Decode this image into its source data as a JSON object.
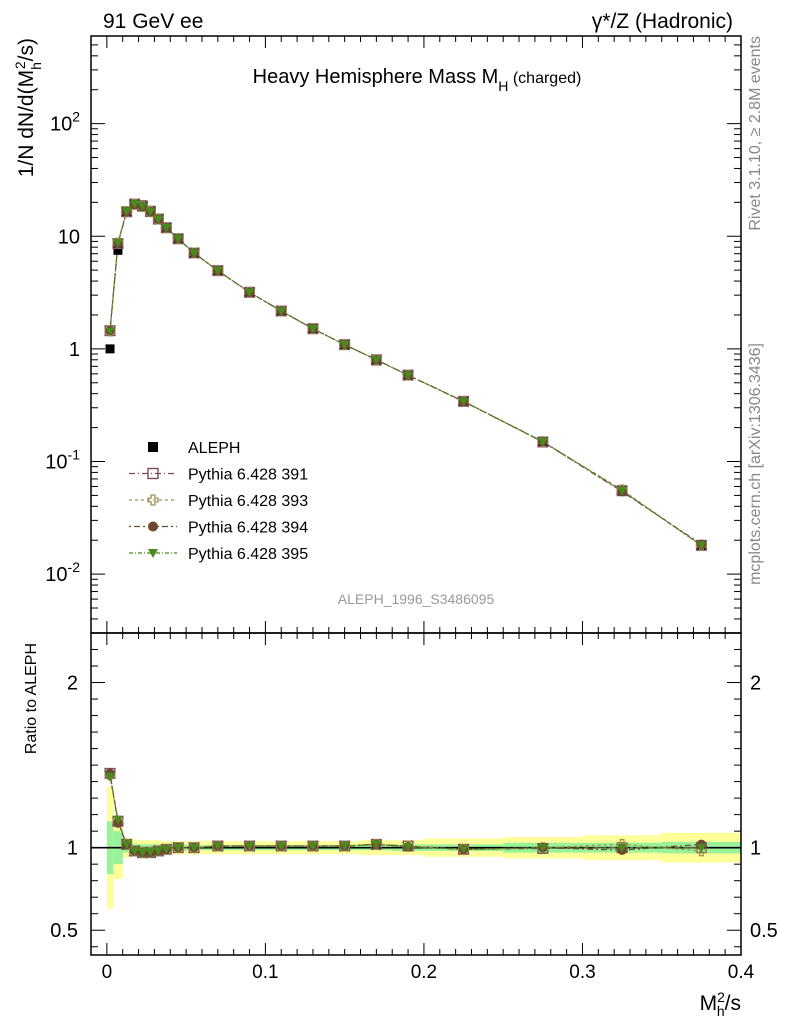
{
  "header": {
    "left": "91 GeV ee",
    "right": "γ*/Z (Hadronic)"
  },
  "side": {
    "rivet": "Rivet 3.1.10, ≥ 2.8M events",
    "mcplots": "mcplots.cern.ch [arXiv:1306.3436]"
  },
  "chart_data": [
    {
      "type": "scatter",
      "title": "Heavy Hemisphere Mass M_H (charged)",
      "ylabel": "1/N dN/d(M_h^2/s)",
      "yscale": "log",
      "ylim": [
        0.003,
        600
      ],
      "xlim": [
        -0.01,
        0.4
      ],
      "yticks_major": [
        "10^-2",
        "10^-1",
        "1",
        "10",
        "10^2"
      ],
      "watermark": "ALEPH_1996_S3486095",
      "legend_position": "middle-left",
      "x": [
        0.002,
        0.007,
        0.0125,
        0.0175,
        0.0225,
        0.0275,
        0.0325,
        0.0375,
        0.045,
        0.055,
        0.07,
        0.09,
        0.11,
        0.13,
        0.15,
        0.17,
        0.19,
        0.225,
        0.275,
        0.325,
        0.375
      ],
      "series": [
        {
          "name": "ALEPH",
          "color": "#000000",
          "marker": "square",
          "values": [
            1.0,
            7.5,
            16.3,
            19.5,
            19.0,
            17.0,
            14.5,
            12.0,
            9.5,
            7.1,
            4.9,
            3.15,
            2.15,
            1.5,
            1.08,
            0.78,
            0.58,
            0.345,
            0.15,
            0.055,
            0.018
          ]
        },
        {
          "name": "Pythia 6.428 391",
          "color": "#7b4a5e",
          "marker": "open-square",
          "values": [
            1.45,
            8.6,
            16.5,
            19.3,
            18.5,
            16.6,
            14.2,
            11.9,
            9.5,
            7.1,
            4.95,
            3.18,
            2.17,
            1.51,
            1.09,
            0.8,
            0.585,
            0.342,
            0.149,
            0.055,
            0.018
          ]
        },
        {
          "name": "Pythia 6.428 393",
          "color": "#a09050",
          "marker": "open-cross",
          "values": [
            1.44,
            8.7,
            16.6,
            19.2,
            18.4,
            16.5,
            14.2,
            11.9,
            9.5,
            7.1,
            4.95,
            3.18,
            2.17,
            1.51,
            1.09,
            0.8,
            0.585,
            0.342,
            0.15,
            0.056,
            0.018
          ]
        },
        {
          "name": "Pythia 6.428 394",
          "color": "#6b4a30",
          "marker": "circle",
          "values": [
            1.45,
            8.6,
            16.5,
            19.1,
            18.4,
            16.5,
            14.2,
            11.9,
            9.5,
            7.1,
            4.95,
            3.18,
            2.17,
            1.51,
            1.09,
            0.8,
            0.583,
            0.341,
            0.15,
            0.054,
            0.0184
          ]
        },
        {
          "name": "Pythia 6.428 395",
          "color": "#4a8a1e",
          "marker": "triangle-down",
          "values": [
            1.43,
            8.8,
            16.7,
            19.3,
            18.5,
            16.6,
            14.2,
            11.9,
            9.5,
            7.1,
            4.95,
            3.18,
            2.17,
            1.51,
            1.09,
            0.8,
            0.583,
            0.342,
            0.15,
            0.055,
            0.018
          ]
        }
      ]
    },
    {
      "type": "scatter",
      "ylabel": "Ratio to ALEPH",
      "xlabel": "M_h^2/s",
      "ylim": [
        0.35,
        2.3
      ],
      "xlim": [
        -0.01,
        0.4
      ],
      "xticks": [
        "0",
        "0.1",
        "0.2",
        "0.3",
        "0.4"
      ],
      "yticks": [
        "0.5",
        "1",
        "2"
      ],
      "reference_line": 1,
      "bands": {
        "x_edges": [
          0.0,
          0.004,
          0.01,
          0.015,
          0.02,
          0.025,
          0.03,
          0.035,
          0.04,
          0.05,
          0.06,
          0.08,
          0.1,
          0.12,
          0.14,
          0.16,
          0.18,
          0.2,
          0.25,
          0.3,
          0.35,
          0.4
        ],
        "inner_color": "#99f299",
        "outer_color": "#ffff99",
        "inner_half": [
          0.16,
          0.1,
          0.03,
          0.025,
          0.02,
          0.02,
          0.02,
          0.02,
          0.02,
          0.015,
          0.015,
          0.015,
          0.015,
          0.015,
          0.015,
          0.015,
          0.02,
          0.02,
          0.03,
          0.03,
          0.035
        ],
        "outer_half": [
          0.37,
          0.19,
          0.06,
          0.05,
          0.045,
          0.045,
          0.045,
          0.04,
          0.04,
          0.04,
          0.04,
          0.04,
          0.04,
          0.04,
          0.04,
          0.045,
          0.045,
          0.055,
          0.065,
          0.075,
          0.09
        ]
      },
      "series": [
        {
          "name": "Pythia 6.428 391",
          "values": [
            1.45,
            1.16,
            1.02,
            0.98,
            0.97,
            0.97,
            0.98,
            0.99,
            1.0,
            1.0,
            1.01,
            1.01,
            1.01,
            1.01,
            1.01,
            1.02,
            1.01,
            0.99,
            0.995,
            1.0,
            1.0
          ]
        },
        {
          "name": "Pythia 6.428 393",
          "values": [
            1.44,
            1.16,
            1.02,
            0.98,
            0.97,
            0.97,
            0.98,
            0.99,
            1.0,
            1.0,
            1.01,
            1.01,
            1.01,
            1.01,
            1.01,
            1.02,
            1.01,
            0.99,
            1.0,
            1.02,
            0.98
          ]
        },
        {
          "name": "Pythia 6.428 394",
          "values": [
            1.45,
            1.15,
            1.02,
            0.98,
            0.97,
            0.97,
            0.98,
            0.99,
            1.0,
            1.0,
            1.01,
            1.01,
            1.01,
            1.01,
            1.01,
            1.02,
            1.005,
            0.99,
            1.0,
            0.985,
            1.02
          ]
        },
        {
          "name": "Pythia 6.428 395",
          "values": [
            1.43,
            1.17,
            1.02,
            0.98,
            0.97,
            0.975,
            0.98,
            0.99,
            1.0,
            1.0,
            1.01,
            1.01,
            1.01,
            1.01,
            1.01,
            1.02,
            1.005,
            0.99,
            1.0,
            1.0,
            1.0
          ]
        }
      ]
    }
  ]
}
